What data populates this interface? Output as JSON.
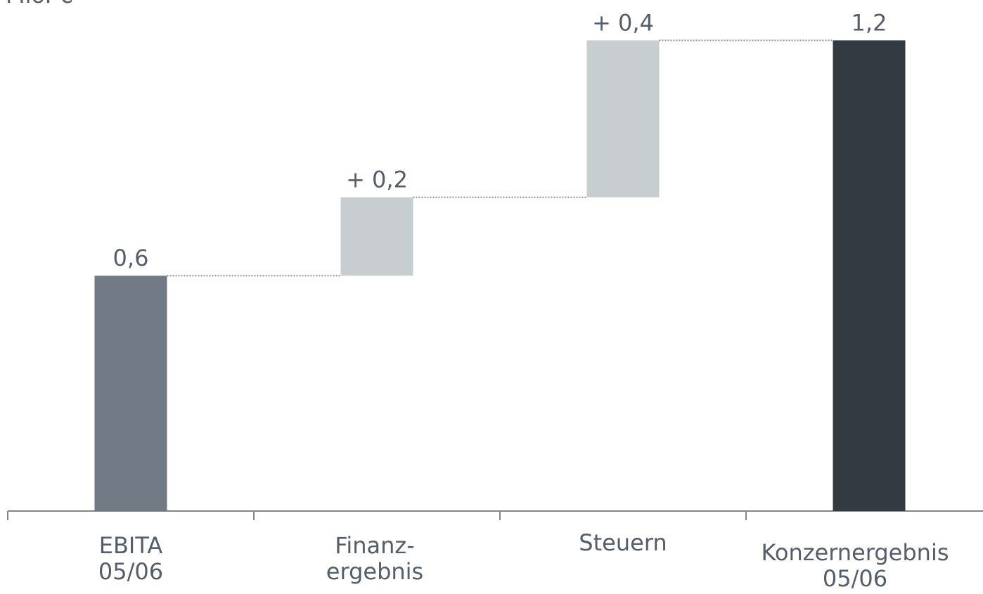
{
  "chart_data": {
    "type": "waterfall",
    "unit": "Mio. €",
    "categories": [
      [
        "EBITA",
        "05/06"
      ],
      [
        "Finanz-",
        "ergebnis"
      ],
      [
        "Steuern"
      ],
      [
        "Konzernergebnis",
        "05/06"
      ]
    ],
    "values": [
      0.6,
      0.2,
      0.4,
      1.2
    ],
    "value_labels": [
      "0,6",
      "+ 0,2",
      "+ 0,4",
      "1,2"
    ],
    "measures": [
      "absolute",
      "relative",
      "relative",
      "total"
    ],
    "colors": [
      "#717a84",
      "#c8cdcf",
      "#c8cdcf",
      "#343a42"
    ],
    "ylim": [
      0,
      1.3
    ]
  }
}
